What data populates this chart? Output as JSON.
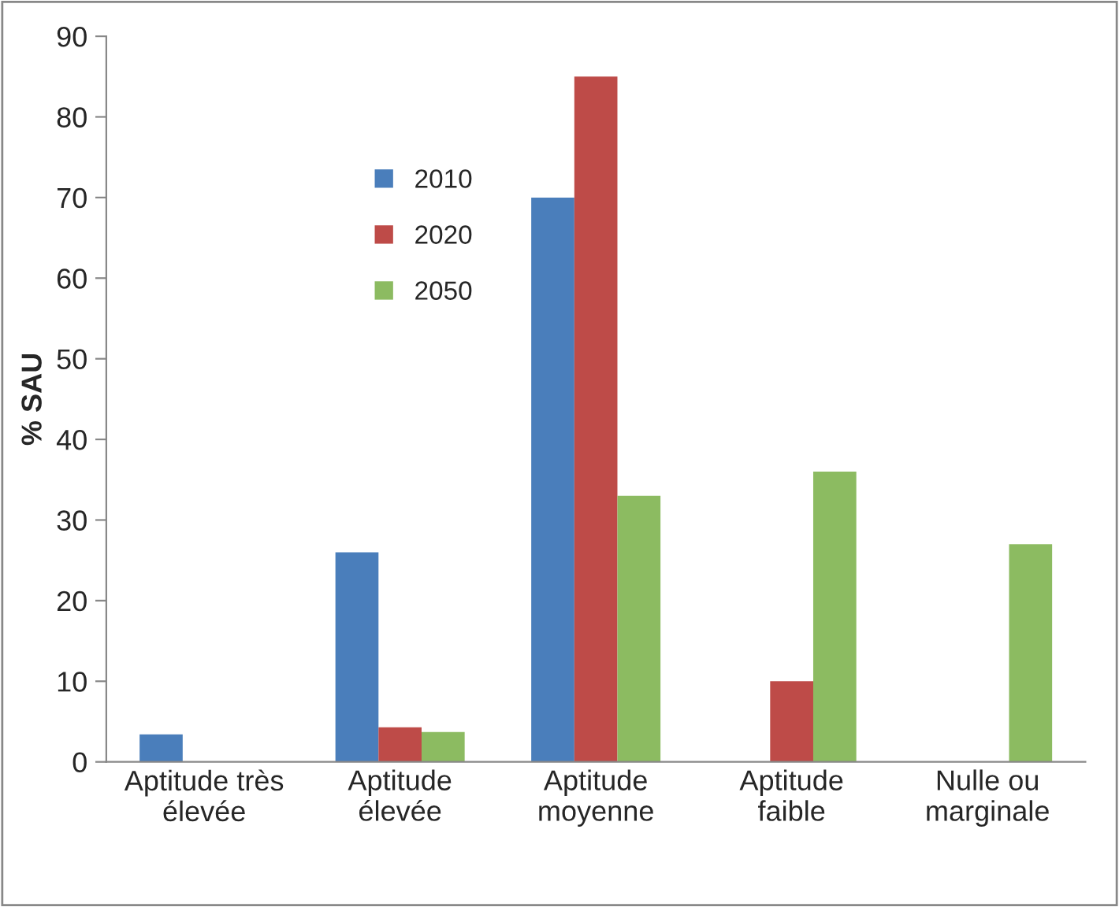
{
  "chart_data": {
    "type": "bar",
    "ylabel": "% SAU",
    "categories": [
      "Aptitude très\nélevée",
      "Aptitude\nélevée",
      "Aptitude\nmoyenne",
      "Aptitude\nfaible",
      "Nulle ou\nmarginale"
    ],
    "series": [
      {
        "name": "2010",
        "color": "#4a7ebb",
        "values": [
          3.4,
          26,
          70,
          null,
          null
        ]
      },
      {
        "name": "2020",
        "color": "#be4b48",
        "values": [
          null,
          4.3,
          85,
          10,
          null
        ]
      },
      {
        "name": "2050",
        "color": "#8cbb61",
        "values": [
          null,
          3.7,
          33,
          36,
          27
        ]
      }
    ],
    "ylim": [
      0,
      90
    ],
    "yticks": [
      0,
      10,
      20,
      30,
      40,
      50,
      60,
      70,
      80,
      90
    ],
    "grid": false,
    "legend": "top left"
  }
}
